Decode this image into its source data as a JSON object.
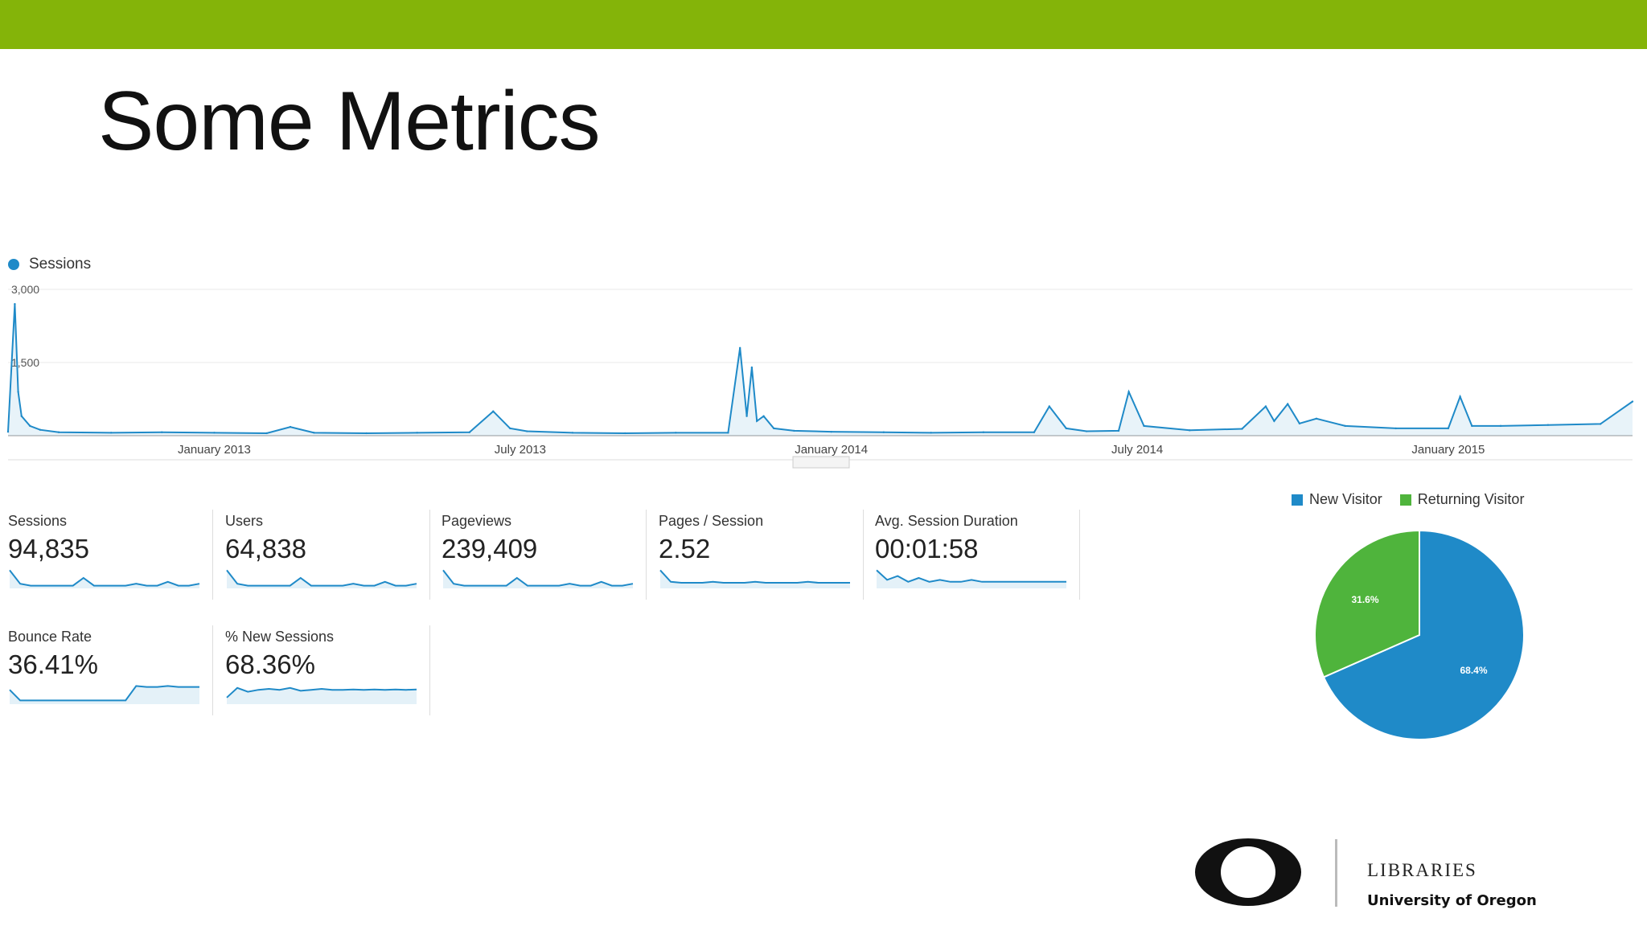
{
  "slide": {
    "title": "Some Metrics",
    "accent_color": "#84b409"
  },
  "chart_data": [
    {
      "type": "line",
      "series": [
        {
          "name": "Sessions",
          "color": "#1f8ac8",
          "x": [
            "2012-09-01",
            "2012-09-05",
            "2012-09-07",
            "2012-09-09",
            "2012-09-14",
            "2012-09-20",
            "2012-10-01",
            "2012-11-01",
            "2012-12-01",
            "2013-01-01",
            "2013-02-01",
            "2013-02-15",
            "2013-03-01",
            "2013-04-01",
            "2013-05-01",
            "2013-06-01",
            "2013-06-15",
            "2013-06-25",
            "2013-07-05",
            "2013-08-01",
            "2013-09-01",
            "2013-10-01",
            "2013-11-01",
            "2013-11-08",
            "2013-11-12",
            "2013-11-15",
            "2013-11-18",
            "2013-11-22",
            "2013-11-28",
            "2013-12-10",
            "2014-01-01",
            "2014-02-01",
            "2014-03-01",
            "2014-04-01",
            "2014-05-01",
            "2014-05-10",
            "2014-05-20",
            "2014-06-01",
            "2014-06-20",
            "2014-06-26",
            "2014-07-05",
            "2014-08-01",
            "2014-09-01",
            "2014-09-15",
            "2014-09-20",
            "2014-09-28",
            "2014-10-05",
            "2014-10-15",
            "2014-11-01",
            "2014-12-01",
            "2015-01-01",
            "2015-01-08",
            "2015-01-15",
            "2015-02-01",
            "2015-03-01",
            "2015-04-01",
            "2015-04-20"
          ],
          "values": [
            80,
            2700,
            900,
            400,
            200,
            120,
            70,
            60,
            70,
            60,
            50,
            180,
            60,
            50,
            60,
            70,
            500,
            150,
            90,
            60,
            50,
            60,
            60,
            1800,
            400,
            1400,
            300,
            400,
            150,
            100,
            80,
            70,
            60,
            70,
            70,
            600,
            150,
            90,
            100,
            900,
            200,
            110,
            140,
            600,
            300,
            650,
            250,
            350,
            200,
            150,
            150,
            800,
            200,
            200,
            220,
            240,
            700
          ]
        }
      ],
      "ylim": [
        0,
        3000
      ],
      "yticks": [
        {
          "value": 3000,
          "label": "3,000"
        },
        {
          "value": 1500,
          "label": "1,500"
        }
      ],
      "xticks": [
        {
          "value": "2013-01-01",
          "label": "January 2013"
        },
        {
          "value": "2013-07-01",
          "label": "July 2013"
        },
        {
          "value": "2014-01-01",
          "label": "January 2014"
        },
        {
          "value": "2014-07-01",
          "label": "July 2014"
        },
        {
          "value": "2015-01-01",
          "label": "January 2015"
        }
      ],
      "grid": true,
      "legend": "top-left"
    },
    {
      "type": "pie",
      "categories": [
        "New Visitor",
        "Returning Visitor"
      ],
      "values": [
        68.4,
        31.6
      ],
      "labels": [
        "68.4%",
        "31.6%"
      ],
      "colors": [
        "#1f8ac8",
        "#4fb43c"
      ],
      "legend": "top"
    }
  ],
  "metrics": [
    {
      "label": "Sessions",
      "value": "94,835",
      "spark": [
        0.9,
        0.2,
        0.1,
        0.1,
        0.1,
        0.1,
        0.1,
        0.5,
        0.1,
        0.1,
        0.1,
        0.1,
        0.2,
        0.1,
        0.1,
        0.3,
        0.1,
        0.1,
        0.2
      ]
    },
    {
      "label": "Users",
      "value": "64,838",
      "spark": [
        0.9,
        0.2,
        0.1,
        0.1,
        0.1,
        0.1,
        0.1,
        0.5,
        0.1,
        0.1,
        0.1,
        0.1,
        0.2,
        0.1,
        0.1,
        0.3,
        0.1,
        0.1,
        0.2
      ]
    },
    {
      "label": "Pageviews",
      "value": "239,409",
      "spark": [
        0.9,
        0.2,
        0.1,
        0.1,
        0.1,
        0.1,
        0.1,
        0.5,
        0.1,
        0.1,
        0.1,
        0.1,
        0.2,
        0.1,
        0.1,
        0.3,
        0.1,
        0.1,
        0.2
      ]
    },
    {
      "label": "Pages / Session",
      "value": "2.52",
      "spark": [
        0.9,
        0.3,
        0.25,
        0.25,
        0.25,
        0.3,
        0.25,
        0.25,
        0.25,
        0.3,
        0.25,
        0.25,
        0.25,
        0.25,
        0.3,
        0.25,
        0.25,
        0.25,
        0.25
      ]
    },
    {
      "label": "Avg. Session Duration",
      "value": "00:01:58",
      "spark": [
        0.9,
        0.4,
        0.6,
        0.3,
        0.5,
        0.3,
        0.4,
        0.3,
        0.3,
        0.4,
        0.3,
        0.3,
        0.3,
        0.3,
        0.3,
        0.3,
        0.3,
        0.3,
        0.3
      ]
    },
    {
      "label": "Bounce Rate",
      "value": "36.41%",
      "spark": [
        0.7,
        0.15,
        0.15,
        0.15,
        0.15,
        0.15,
        0.15,
        0.15,
        0.15,
        0.15,
        0.15,
        0.15,
        0.9,
        0.85,
        0.85,
        0.9,
        0.85,
        0.85,
        0.85
      ]
    },
    {
      "label": "% New Sessions",
      "value": "68.36%",
      "spark": [
        0.3,
        0.8,
        0.6,
        0.7,
        0.75,
        0.7,
        0.8,
        0.65,
        0.7,
        0.75,
        0.7,
        0.7,
        0.72,
        0.7,
        0.72,
        0.7,
        0.72,
        0.7,
        0.72
      ]
    }
  ],
  "logo": {
    "libraries": "LIBRARIES",
    "university": "University of Oregon"
  }
}
